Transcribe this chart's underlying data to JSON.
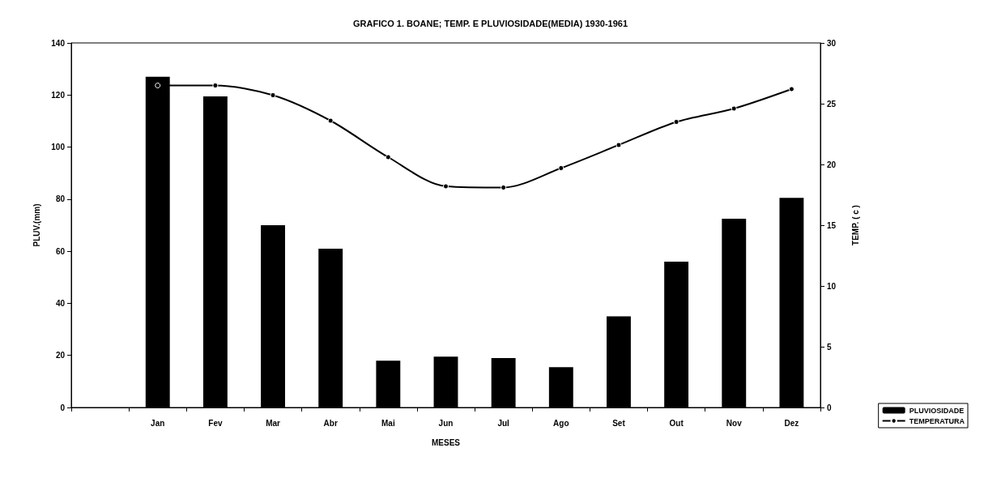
{
  "chart_data": {
    "type": "bar",
    "title": "GRAFICO 1. BOANE; TEMP. E PLUVIOSIDADE(MEDIA) 1930-1961",
    "xlabel": "MESES",
    "ylabel": "PLUV.(mm)",
    "y2label": "TEMP. ( c )",
    "categories": [
      null,
      "Jan",
      "Fev",
      "Mar",
      "Abr",
      "Mai",
      "Jun",
      "Jul",
      "Ago",
      "Set",
      "Out",
      "Nov",
      "Dez"
    ],
    "series": [
      {
        "name": "PLUVIOSIDADE",
        "color": "#000000",
        "values": [
          null,
          127,
          119.5,
          70,
          61,
          18,
          19.5,
          19,
          15.5,
          35,
          56,
          72.5,
          80.5
        ]
      },
      {
        "name": "TEMPERATURA",
        "type": "line",
        "axis": "y2",
        "color": "#000000",
        "marker": "circle",
        "line_style": "solid",
        "values": [
          null,
          26.5,
          26.5,
          25.7,
          23.6,
          20.6,
          18.2,
          18.1,
          19.7,
          21.6,
          23.5,
          24.6,
          26.2
        ]
      }
    ],
    "ylim": [
      0,
      140
    ],
    "yticks": [
      0,
      20,
      40,
      60,
      80,
      100,
      120,
      140
    ],
    "y2lim": [
      0,
      30
    ],
    "y2ticks": [
      0,
      5,
      10,
      15,
      20,
      25,
      30
    ],
    "grid": false,
    "legend": "bottom right"
  }
}
